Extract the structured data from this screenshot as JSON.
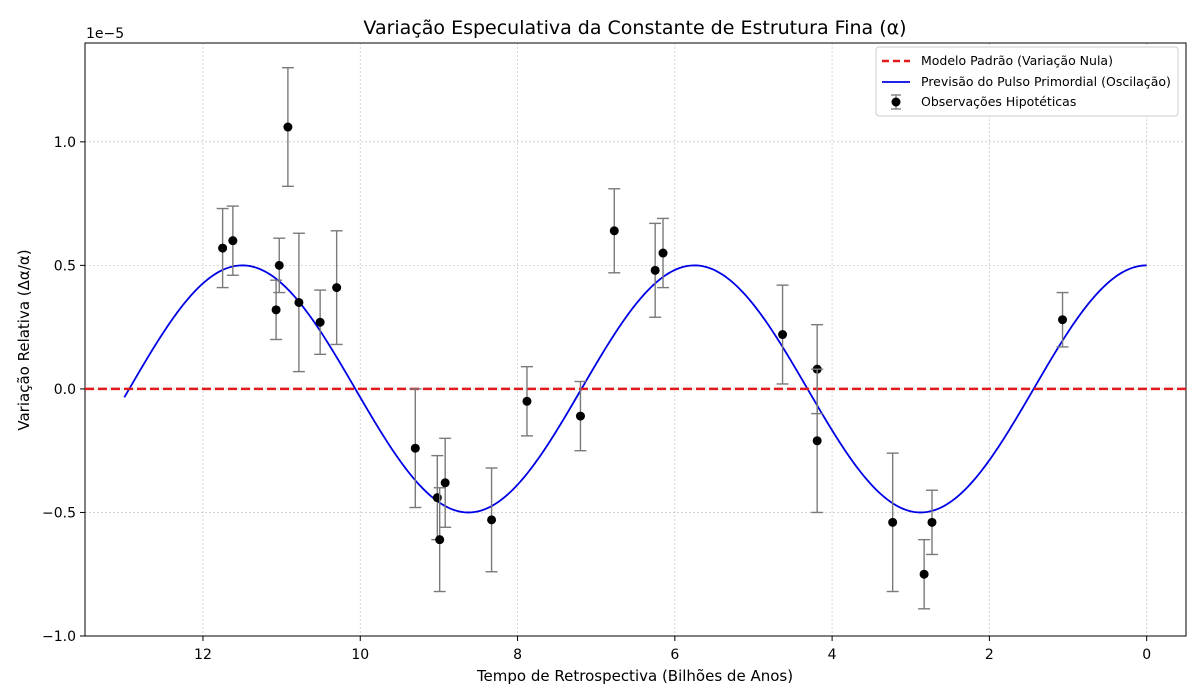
{
  "chart_data": {
    "type": "scatter",
    "title": "Variação Especulativa da Constante de Estrutura Fina (α)",
    "xlabel": "Tempo de Retrospectiva (Bilhões de Anos)",
    "ylabel": "Variação Relativa (Δα/α)",
    "y_scale_label": "1e−5",
    "xlim": [
      13.5,
      -0.5
    ],
    "ylim": [
      -1e-05,
      1.4e-05
    ],
    "x_ticks": [
      12,
      10,
      8,
      6,
      4,
      2,
      0
    ],
    "x_tick_labels": [
      "12",
      "10",
      "8",
      "6",
      "4",
      "2",
      "0"
    ],
    "y_ticks": [
      -1e-05,
      -5e-06,
      0,
      5e-06,
      1e-05
    ],
    "y_tick_labels": [
      "−1.0",
      "−0.5",
      "0.0",
      "0.5",
      "1.0"
    ],
    "grid": true,
    "legend_position": "top-right",
    "colors": {
      "zero_line": "#e31a1c",
      "model": "#0000e6",
      "points": "#000000",
      "errorbars": "#7a7a7a",
      "grid": "#cccccc"
    },
    "zero_line": {
      "name": "Modelo Padrão (Variação Nula)",
      "y": 0
    },
    "model_curve": {
      "name": "Previsão do Pulso Primordial (Oscilação)",
      "formula": "y = 0.5e-5 * cos(2*pi*x/5.75)",
      "x_range": [
        0,
        13
      ]
    },
    "observations": {
      "name": "Observações Hipotéticas",
      "points": [
        {
          "x": 11.75,
          "y": 5.7e-06,
          "err": 1.6e-06
        },
        {
          "x": 11.62,
          "y": 6e-06,
          "err": 1.4e-06
        },
        {
          "x": 11.07,
          "y": 3.2e-06,
          "err": 1.2e-06
        },
        {
          "x": 11.03,
          "y": 5e-06,
          "err": 1.1e-06
        },
        {
          "x": 10.92,
          "y": 1.06e-05,
          "err": 2.4e-06
        },
        {
          "x": 10.78,
          "y": 3.5e-06,
          "err": 2.8e-06
        },
        {
          "x": 10.51,
          "y": 2.7e-06,
          "err": 1.3e-06
        },
        {
          "x": 10.3,
          "y": 4.1e-06,
          "err": 2.3e-06
        },
        {
          "x": 9.3,
          "y": -2.4e-06,
          "err": 2.4e-06
        },
        {
          "x": 9.02,
          "y": -4.4e-06,
          "err": 1.7e-06
        },
        {
          "x": 8.99,
          "y": -6.1e-06,
          "err": 2.1e-06
        },
        {
          "x": 8.92,
          "y": -3.8e-06,
          "err": 1.8e-06
        },
        {
          "x": 8.33,
          "y": -5.3e-06,
          "err": 2.1e-06
        },
        {
          "x": 7.88,
          "y": -5e-07,
          "err": 1.4e-06
        },
        {
          "x": 7.2,
          "y": -1.1e-06,
          "err": 1.4e-06
        },
        {
          "x": 6.77,
          "y": 6.4e-06,
          "err": 1.7e-06
        },
        {
          "x": 6.25,
          "y": 4.8e-06,
          "err": 1.9e-06
        },
        {
          "x": 6.15,
          "y": 5.5e-06,
          "err": 1.4e-06
        },
        {
          "x": 4.63,
          "y": 2.2e-06,
          "err": 2e-06
        },
        {
          "x": 4.19,
          "y": 8e-07,
          "err": 1.8e-06
        },
        {
          "x": 4.19,
          "y": -2.1e-06,
          "err": 2.9e-06
        },
        {
          "x": 3.23,
          "y": -5.4e-06,
          "err": 2.8e-06
        },
        {
          "x": 2.83,
          "y": -7.5e-06,
          "err": 1.4e-06
        },
        {
          "x": 2.73,
          "y": -5.4e-06,
          "err": 1.3e-06
        },
        {
          "x": 1.07,
          "y": 2.8e-06,
          "err": 1.1e-06
        }
      ]
    }
  }
}
